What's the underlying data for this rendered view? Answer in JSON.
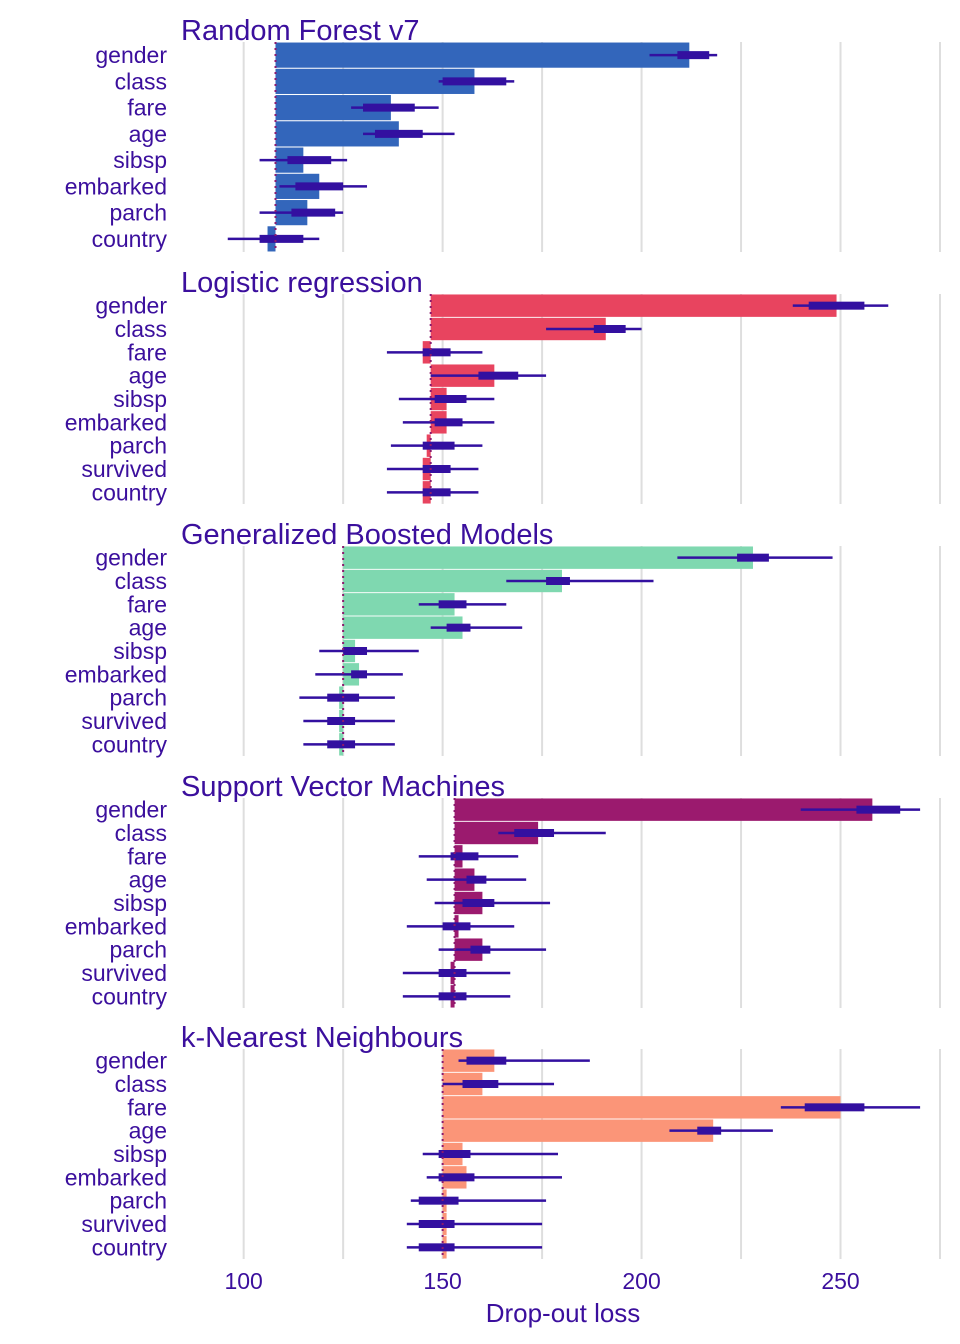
{
  "chart_data": {
    "type": "bar",
    "xlabel": "Drop-out loss",
    "xlim": [
      84,
      275
    ],
    "xticks": [
      100,
      150,
      200,
      250
    ],
    "grid": true,
    "colors": {
      "text": "#3b0f9d",
      "whisker": "#3310a0",
      "baseline_line": "#8c1a6e",
      "grid": "#dedede"
    },
    "panels": [
      {
        "title": "Random Forest v7",
        "color": "#3366bb",
        "baseline": 108,
        "features": [
          {
            "name": "gender",
            "value": 212,
            "box": [
              209,
              217
            ],
            "whisker": [
              202,
              219
            ]
          },
          {
            "name": "class",
            "value": 158,
            "box": [
              150,
              166
            ],
            "whisker": [
              149,
              168
            ]
          },
          {
            "name": "fare",
            "value": 137,
            "box": [
              130,
              143
            ],
            "whisker": [
              127,
              149
            ]
          },
          {
            "name": "age",
            "value": 139,
            "box": [
              133,
              145
            ],
            "whisker": [
              130,
              153
            ]
          },
          {
            "name": "sibsp",
            "value": 115,
            "box": [
              111,
              122
            ],
            "whisker": [
              104,
              126
            ]
          },
          {
            "name": "embarked",
            "value": 119,
            "box": [
              113,
              125
            ],
            "whisker": [
              109,
              131
            ]
          },
          {
            "name": "parch",
            "value": 116,
            "box": [
              112,
              123
            ],
            "whisker": [
              104,
              125
            ]
          },
          {
            "name": "country",
            "value": 106,
            "box": [
              104,
              115
            ],
            "whisker": [
              96,
              119
            ]
          }
        ]
      },
      {
        "title": "Logistic regression",
        "color": "#e8445f",
        "baseline": 147,
        "features": [
          {
            "name": "gender",
            "value": 249,
            "box": [
              242,
              256
            ],
            "whisker": [
              238,
              262
            ]
          },
          {
            "name": "class",
            "value": 191,
            "box": [
              188,
              196
            ],
            "whisker": [
              176,
              200
            ]
          },
          {
            "name": "fare",
            "value": 145,
            "box": [
              145,
              152
            ],
            "whisker": [
              136,
              160
            ]
          },
          {
            "name": "age",
            "value": 163,
            "box": [
              159,
              169
            ],
            "whisker": [
              147,
              176
            ]
          },
          {
            "name": "sibsp",
            "value": 151,
            "box": [
              148,
              156
            ],
            "whisker": [
              139,
              163
            ]
          },
          {
            "name": "embarked",
            "value": 151,
            "box": [
              148,
              155
            ],
            "whisker": [
              140,
              163
            ]
          },
          {
            "name": "parch",
            "value": 146,
            "box": [
              145,
              153
            ],
            "whisker": [
              137,
              160
            ]
          },
          {
            "name": "survived",
            "value": 145,
            "box": [
              145,
              152
            ],
            "whisker": [
              136,
              159
            ]
          },
          {
            "name": "country",
            "value": 145,
            "box": [
              145,
              152
            ],
            "whisker": [
              136,
              159
            ]
          }
        ]
      },
      {
        "title": "Generalized Boosted Models",
        "color": "#7fd8b0",
        "baseline": 125,
        "features": [
          {
            "name": "gender",
            "value": 228,
            "box": [
              224,
              232
            ],
            "whisker": [
              209,
              248
            ]
          },
          {
            "name": "class",
            "value": 180,
            "box": [
              176,
              182
            ],
            "whisker": [
              166,
              203
            ]
          },
          {
            "name": "fare",
            "value": 153,
            "box": [
              149,
              156
            ],
            "whisker": [
              144,
              166
            ]
          },
          {
            "name": "age",
            "value": 155,
            "box": [
              151,
              157
            ],
            "whisker": [
              147,
              170
            ]
          },
          {
            "name": "sibsp",
            "value": 128,
            "box": [
              125,
              131
            ],
            "whisker": [
              119,
              144
            ]
          },
          {
            "name": "embarked",
            "value": 129,
            "box": [
              127,
              131
            ],
            "whisker": [
              118,
              140
            ]
          },
          {
            "name": "parch",
            "value": 124,
            "box": [
              121,
              129
            ],
            "whisker": [
              114,
              138
            ]
          },
          {
            "name": "survived",
            "value": 124,
            "box": [
              121,
              128
            ],
            "whisker": [
              115,
              138
            ]
          },
          {
            "name": "country",
            "value": 124,
            "box": [
              121,
              128
            ],
            "whisker": [
              115,
              138
            ]
          }
        ]
      },
      {
        "title": "Support Vector Machines",
        "color": "#9b1a6e",
        "baseline": 153,
        "features": [
          {
            "name": "gender",
            "value": 258,
            "box": [
              254,
              265
            ],
            "whisker": [
              240,
              270
            ]
          },
          {
            "name": "class",
            "value": 174,
            "box": [
              168,
              178
            ],
            "whisker": [
              164,
              191
            ]
          },
          {
            "name": "fare",
            "value": 155,
            "box": [
              152,
              159
            ],
            "whisker": [
              144,
              169
            ]
          },
          {
            "name": "age",
            "value": 158,
            "box": [
              156,
              161
            ],
            "whisker": [
              146,
              171
            ]
          },
          {
            "name": "sibsp",
            "value": 160,
            "box": [
              155,
              163
            ],
            "whisker": [
              148,
              177
            ]
          },
          {
            "name": "embarked",
            "value": 154,
            "box": [
              150,
              157
            ],
            "whisker": [
              141,
              168
            ]
          },
          {
            "name": "parch",
            "value": 160,
            "box": [
              157,
              162
            ],
            "whisker": [
              149,
              176
            ]
          },
          {
            "name": "survived",
            "value": 152,
            "box": [
              149,
              156
            ],
            "whisker": [
              140,
              167
            ]
          },
          {
            "name": "country",
            "value": 152,
            "box": [
              149,
              156
            ],
            "whisker": [
              140,
              167
            ]
          }
        ]
      },
      {
        "title": "k-Nearest Neighbours",
        "color": "#fb9578",
        "baseline": 150,
        "features": [
          {
            "name": "gender",
            "value": 163,
            "box": [
              156,
              166
            ],
            "whisker": [
              154,
              187
            ]
          },
          {
            "name": "class",
            "value": 160,
            "box": [
              155,
              164
            ],
            "whisker": [
              150,
              178
            ]
          },
          {
            "name": "fare",
            "value": 250,
            "box": [
              241,
              256
            ],
            "whisker": [
              235,
              270
            ]
          },
          {
            "name": "age",
            "value": 218,
            "box": [
              214,
              220
            ],
            "whisker": [
              207,
              233
            ]
          },
          {
            "name": "sibsp",
            "value": 155,
            "box": [
              149,
              157
            ],
            "whisker": [
              145,
              179
            ]
          },
          {
            "name": "embarked",
            "value": 156,
            "box": [
              149,
              158
            ],
            "whisker": [
              146,
              180
            ]
          },
          {
            "name": "parch",
            "value": 151,
            "box": [
              144,
              154
            ],
            "whisker": [
              142,
              176
            ]
          },
          {
            "name": "survived",
            "value": 151,
            "box": [
              144,
              153
            ],
            "whisker": [
              141,
              175
            ]
          },
          {
            "name": "country",
            "value": 151,
            "box": [
              144,
              153
            ],
            "whisker": [
              141,
              175
            ]
          }
        ]
      }
    ]
  }
}
